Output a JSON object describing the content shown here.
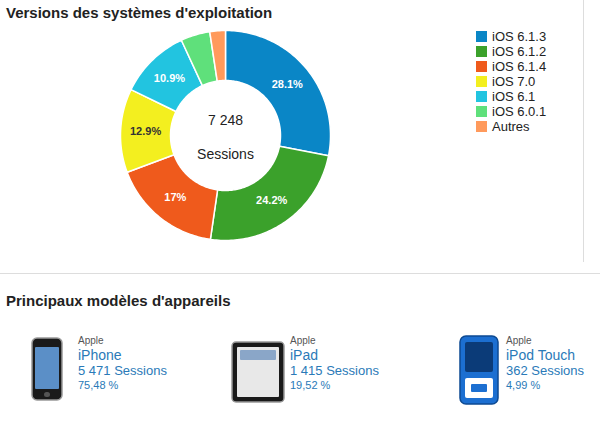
{
  "chart_data": {
    "type": "donut",
    "title": "Versions des systèmes d'exploitation",
    "categories": [
      "iOS 6.1.3",
      "iOS 6.1.2",
      "iOS 6.1.4",
      "iOS 7.0",
      "iOS 6.1",
      "iOS 6.0.1",
      "Autres"
    ],
    "values": [
      28.1,
      24.2,
      17,
      12.9,
      10.9,
      4.5,
      2.4
    ],
    "value_labels": [
      "28.1%",
      "24.2%",
      "17%",
      "12.9%",
      "10.9%",
      null,
      null
    ],
    "colors": [
      "#0a86c6",
      "#3ba12b",
      "#ef5a1c",
      "#f3ef1f",
      "#22c4e0",
      "#5fe07b",
      "#ff9a5c"
    ],
    "data_labels": true,
    "legend": "right",
    "annotations": [
      "7 248",
      "Sessions"
    ]
  },
  "devices": {
    "title": "Principaux modèles d'appareils",
    "items": [
      {
        "brand": "Apple",
        "name": "iPhone",
        "sessions": "5 471 Sessions",
        "share": "75,48 %"
      },
      {
        "brand": "Apple",
        "name": "iPad",
        "sessions": "1 415 Sessions",
        "share": "19,52 %"
      },
      {
        "brand": "Apple",
        "name": "iPod Touch",
        "sessions": "362 Sessions",
        "share": "4,99 %"
      }
    ]
  }
}
